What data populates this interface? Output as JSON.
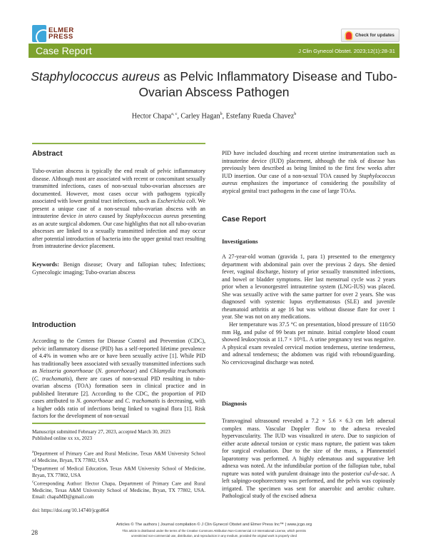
{
  "header": {
    "logo_line1": "ELMER",
    "logo_line2": "PRESS",
    "check_updates": "Check for updates",
    "article_type": "Case Report",
    "citation": "J Clin Gynecol Obstet. 2023;12(1):28-31",
    "brand_color": "#7ea22e"
  },
  "title": {
    "italic": "Staphylococcus aureus",
    "rest": " as Pelvic Inflammatory Disease and Tubo-Ovarian Abscess Pathogen"
  },
  "authors": [
    {
      "name": "Hector Chapa",
      "sup": "a, c",
      "sep": ", "
    },
    {
      "name": "Carley Hagan",
      "sup": "b",
      "sep": ", "
    },
    {
      "name": "Estefany Rueda Chavez",
      "sup": "b",
      "sep": ""
    }
  ],
  "abstract": {
    "heading": "Abstract",
    "body": [
      {
        "text": "Tubo-ovarian abscess is typically the end result of pelvic inflammatory disease. Although most are associated with recent or concomitant sexually transmitted infections, cases of non-sexual tubo-ovarian abscesses are documented. However, most cases occur with pathogens typically associated with lower genital tract infections, such as ",
        "italic": false
      },
      {
        "text": "Escherichia coli",
        "italic": true
      },
      {
        "text": ". We present a unique case of a non-sexual tubo-ovarian abscess with an intrauterine device ",
        "italic": false
      },
      {
        "text": "in utero",
        "italic": true
      },
      {
        "text": " caused by ",
        "italic": false
      },
      {
        "text": "Staphylococcus aureus",
        "italic": true
      },
      {
        "text": " presenting as an acute surgical abdomen. Our case highlights that not all tubo-ovarian abscesses are linked to a sexually transmitted infection and may occur after potential introduction of bacteria into the upper genital tract resulting from intrauterine device placement.",
        "italic": false
      }
    ],
    "keywords_label": "Keywords:",
    "keywords": " Benign disease; Ovary and fallopian tubes; Infections; Gynecologic imaging; Tubo-ovarian abscess"
  },
  "introduction": {
    "heading": "Introduction",
    "body": [
      {
        "text": "According to the Centers for Disease Control and Prevention (CDC), pelvic inflammatory disease (PID) has a self-reported lifetime prevalence of 4.4% in women who are or have been sexually active [1]. While PID has traditionally been associated with sexually transmitted infections such as ",
        "italic": false
      },
      {
        "text": "Neisseria gonorrhoeae",
        "italic": true
      },
      {
        "text": " (",
        "italic": false
      },
      {
        "text": "N. gonorrhoeae",
        "italic": true
      },
      {
        "text": ") and ",
        "italic": false
      },
      {
        "text": "Chlamydia trachomatis",
        "italic": true
      },
      {
        "text": " (",
        "italic": false
      },
      {
        "text": "C. trachomatis",
        "italic": true
      },
      {
        "text": "), there are cases of non-sexual PID resulting in tubo-ovarian abscess (TOA) formation seen in clinical practice and in published literature [2]. According to the CDC, the proportion of PID cases attributed to ",
        "italic": false
      },
      {
        "text": "N. gonorrhoeae",
        "italic": true
      },
      {
        "text": " and ",
        "italic": false
      },
      {
        "text": "C. trachomatis",
        "italic": true
      },
      {
        "text": " is decreasing, with a higher odds ratio of infections being linked to vaginal flora [1]. Risk factors for the development of non-sexual",
        "italic": false
      }
    ]
  },
  "right_intro": [
    {
      "text": "PID have included douching and recent uterine instrumentation such as intrauterine device (IUD) placement, although the risk of disease has previously been described as being limited to the first few weeks after IUD insertion. Our case of a non-sexual TOA caused by ",
      "italic": false
    },
    {
      "text": "Staphylococcus aureus",
      "italic": true
    },
    {
      "text": " emphasizes the importance of considering the possibility of atypical genital tract pathogens in the case of large TOAs.",
      "italic": false
    }
  ],
  "case_report": {
    "heading": "Case Report",
    "investigations": {
      "heading": "Investigations",
      "p1": [
        {
          "text": "A 27-year-old woman (gravida 1, para 1) presented to the emergency department with abdominal pain over the previous 2 days. She denied fever, vaginal discharge, history of prior sexually transmitted infections, and bowel or bladder symptoms. Her last menstrual cycle was 2 years prior when a levonorgestrel intrauterine system (LNG-IUS) was placed. She was sexually active with the same partner for over 2 years. She was diagnosed with systemic lupus erythematosus (SLE) and juvenile rheumatoid arthritis at age 16 but was without disease flare for over 1 year. She was not on any medications.",
          "italic": false
        }
      ],
      "p2": [
        {
          "text": "Her temperature was 37.5 °C on presentation, blood pressure of 110/50 mm Hg, and pulse of 99 beats per minute. Initial complete blood count showed leukocytosis at 11.7 × 10⁹/L. A urine pregnancy test was negative. A physical exam revealed cervical motion tenderness, uterine tenderness, and adnexal tenderness; the abdomen was rigid with rebound/guarding. No cervicovaginal discharge was noted.",
          "italic": false
        }
      ]
    },
    "diagnosis": {
      "heading": "Diagnosis",
      "p1": [
        {
          "text": "Transvaginal ultrasound revealed a 7.2 × 5.6 × 6.3 cm left adnexal complex mass. Vascular Doppler flow to the adnexa revealed hypervascularity. The IUD was visualized ",
          "italic": false
        },
        {
          "text": "in utero",
          "italic": true
        },
        {
          "text": ". Due to suspicion of either acute adnexal torsion or cystic mass rupture, the patient was taken for surgical evaluation. Due to the size of the mass, a Pfannenstiel laparotomy was performed. A highly edematous and suppurative left adnexa was noted. At the infundibular portion of the fallopian tube, tubal rupture was noted with purulent drainage into the posterior ",
          "italic": false
        },
        {
          "text": "cul-de-sac",
          "italic": true
        },
        {
          "text": ". A left salpingo-oophorectomy was performed, and the pelvis was copiously irrigated. The specimen was sent for anaerobic and aerobic culture. Pathological study of the excised adnexa",
          "italic": false
        }
      ]
    }
  },
  "footnotes": {
    "submitted": "Manuscript submitted February 27, 2023, accepted March 30, 2023",
    "published": "Published online xx xx, 2023",
    "affiliations": [
      {
        "sup": "a",
        "text": "Department of Primary Care and Rural Medicine, Texas A&M University School of Medicine, Bryan, TX 77802, USA"
      },
      {
        "sup": "b",
        "text": "Department of Medical Education, Texas A&M University School of Medicine, Bryan, TX 77802, USA"
      },
      {
        "sup": "c",
        "text": "Corresponding Author: Hector Chapa, Department of Primary Care and Rural Medicine, Texas A&M University School of Medicine, Bryan, TX 77802, USA. Email: chapaMD@gmail.com"
      }
    ],
    "doi": "doi: https://doi.org/10.14740/jcgo864"
  },
  "footer": {
    "page_number": "28",
    "line1": "Articles © The authors   |   Journal compilation © J Clin Gynecol Obstet and Elmer Press Inc™   |   www.jcgo.org",
    "line2": "This article is distributed under the terms of the Creative Commons Attribution Non-Commercial 4.0 International License, which permits",
    "line3": "unrestricted non-commercial use, distribution, and reproduction in any medium, provided the original work is properly cited"
  }
}
